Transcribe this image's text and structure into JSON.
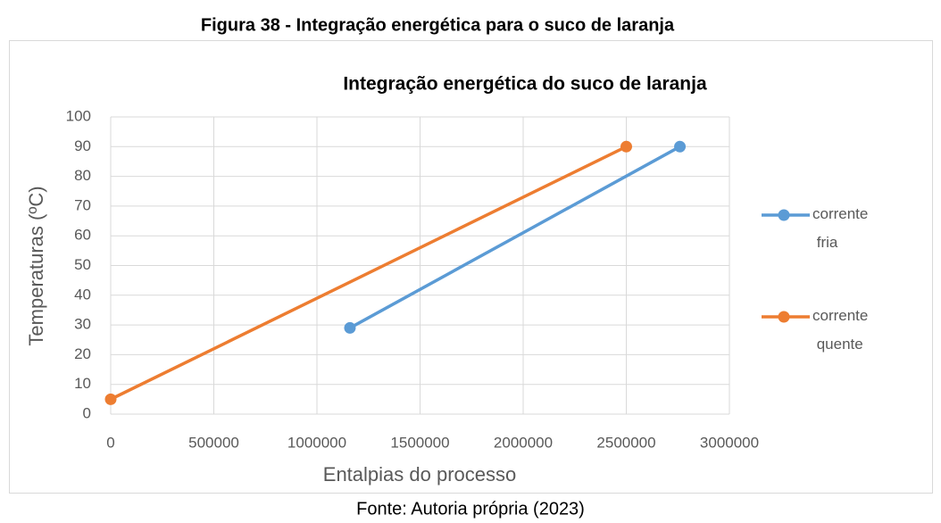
{
  "caption": "Figura 38 - Integração energética para o suco de laranja",
  "source": "Fonte: Autoria própria (2023)",
  "chart_data": {
    "type": "line",
    "title": "Integração energética do suco de laranja",
    "xlabel": "Entalpias do processo",
    "ylabel": "Temperaturas (ºC)",
    "xlim": [
      0,
      3000000
    ],
    "xticks": [
      0,
      500000,
      1000000,
      1500000,
      2000000,
      2500000,
      3000000
    ],
    "ylim": [
      0,
      100
    ],
    "yticks": [
      0,
      10,
      20,
      30,
      40,
      50,
      60,
      70,
      80,
      90,
      100
    ],
    "grid": true,
    "legend": "right",
    "series": [
      {
        "name": "corrente fria",
        "color": "#5b9bd5",
        "x": [
          1160000,
          2760000
        ],
        "values": [
          29,
          90
        ]
      },
      {
        "name": "corrente quente",
        "color": "#ed7d31",
        "x": [
          0,
          2500000
        ],
        "values": [
          5,
          90
        ]
      }
    ]
  }
}
